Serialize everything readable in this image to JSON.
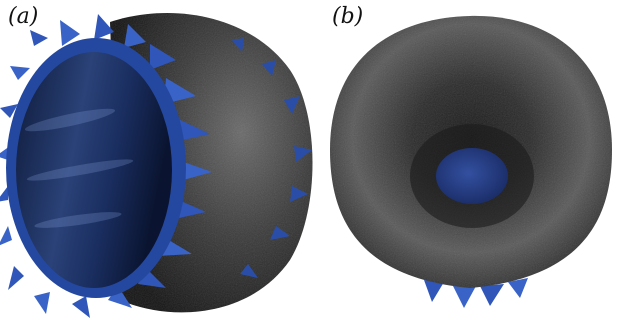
{
  "panels": [
    {
      "label": "(a)"
    },
    {
      "label": "(b)"
    }
  ],
  "colors": {
    "shell": "#2a2a2a",
    "shell_highlight": "#6a6a6a",
    "spike_blue": "#2f56b8",
    "spike_dark": "#152b66",
    "interior_blue": "#1e3266",
    "background": "#ffffff"
  }
}
